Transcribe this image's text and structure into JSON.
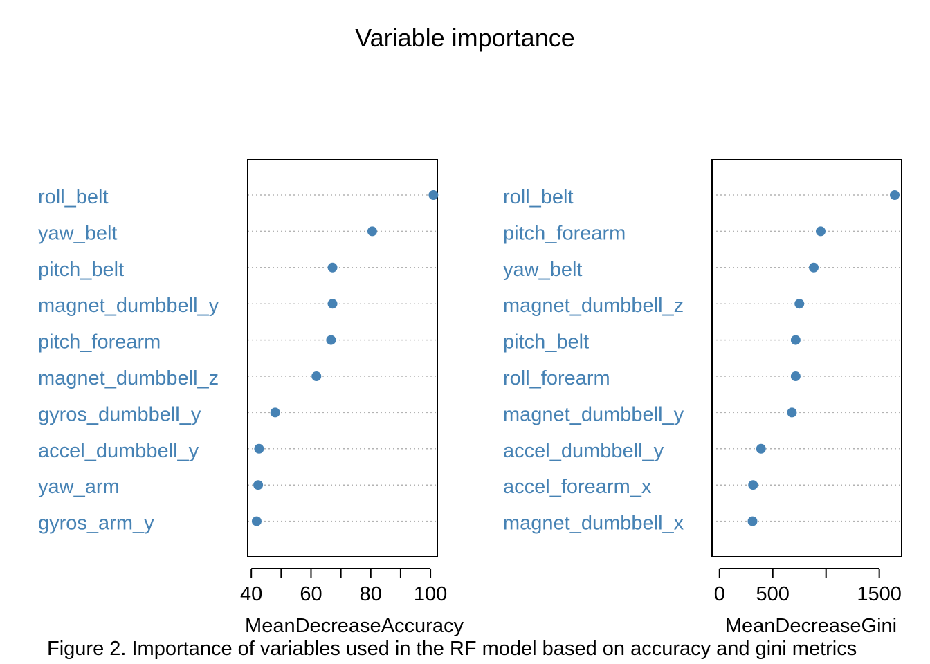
{
  "title": "Variable importance",
  "caption": "Figure 2. Importance of variables used in the RF model based on accuracy and gini metrics",
  "colors": {
    "label": "#4682b4",
    "point": "#4682b4",
    "grid": "#b3b3b3",
    "axis": "#000000"
  },
  "chart_data": [
    {
      "type": "scatter",
      "xlabel": "MeanDecreaseAccuracy",
      "xlim": [
        38.8,
        102.3
      ],
      "ticks": [
        40,
        50,
        60,
        70,
        80,
        90,
        100
      ],
      "tick_labels": [
        "40",
        "",
        "60",
        "",
        "80",
        "",
        "100"
      ],
      "grid": "dotted horizontal",
      "categories": [
        "roll_belt",
        "yaw_belt",
        "pitch_belt",
        "magnet_dumbbell_y",
        "pitch_forearm",
        "magnet_dumbbell_z",
        "gyros_dumbbell_y",
        "accel_dumbbell_y",
        "yaw_arm",
        "gyros_arm_y"
      ],
      "values": [
        101.0,
        80.5,
        67.2,
        67.2,
        66.7,
        61.8,
        48.0,
        42.6,
        42.3,
        41.8
      ]
    },
    {
      "type": "scatter",
      "xlabel": "MeanDecreaseGini",
      "xlim": [
        -70,
        1710
      ],
      "ticks": [
        0,
        500,
        1000,
        1500
      ],
      "tick_labels": [
        "0",
        "500",
        "",
        "1500"
      ],
      "grid": "dotted horizontal",
      "categories": [
        "roll_belt",
        "pitch_forearm",
        "yaw_belt",
        "magnet_dumbbell_z",
        "pitch_belt",
        "roll_forearm",
        "magnet_dumbbell_y",
        "accel_dumbbell_y",
        "accel_forearm_x",
        "magnet_dumbbell_x"
      ],
      "values": [
        1645,
        950,
        885,
        750,
        715,
        715,
        680,
        390,
        315,
        310
      ]
    }
  ]
}
